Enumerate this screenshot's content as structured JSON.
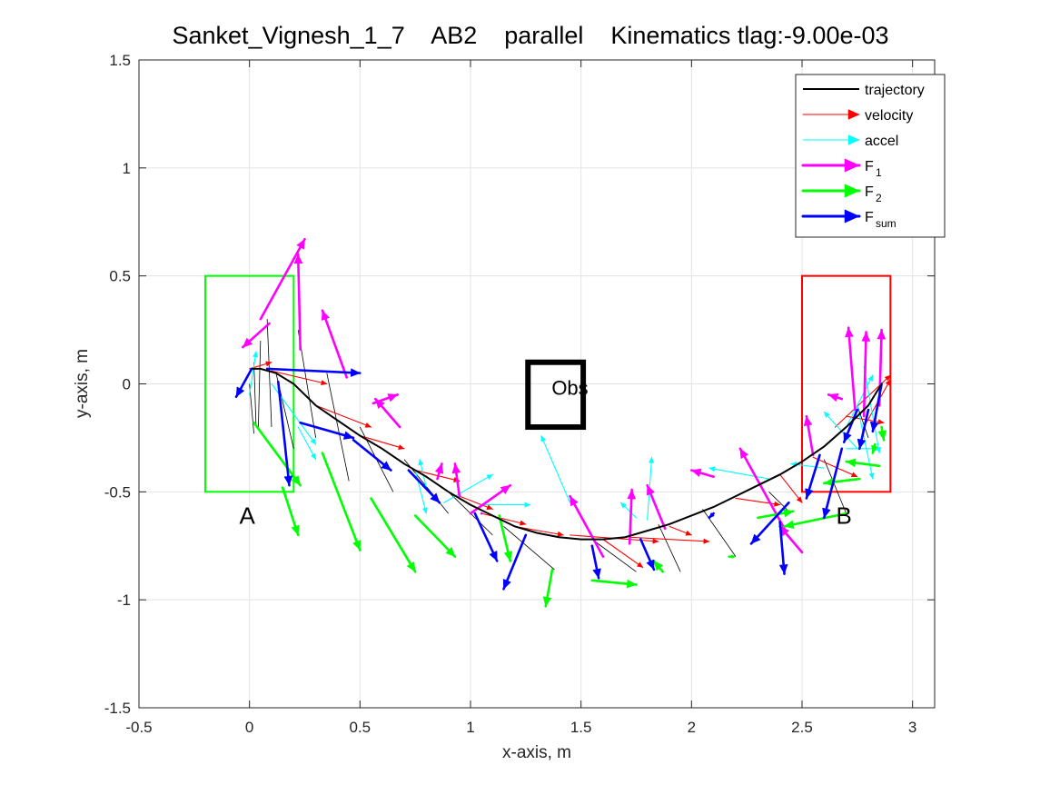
{
  "chart_data": {
    "type": "line",
    "title": "Sanket_Vignesh_1_7    AB2    parallel    Kinematics tlag:-9.00e-03",
    "xlabel": "x-axis, m",
    "ylabel": "y-axis, m",
    "xlim": [
      -0.5,
      3.1
    ],
    "ylim": [
      -1.5,
      1.5
    ],
    "x_ticks": [
      -0.5,
      0,
      0.5,
      1,
      1.5,
      2,
      2.5,
      3
    ],
    "x_tick_labels": [
      "-0.5",
      "0",
      "0.5",
      "1",
      "1.5",
      "2",
      "2.5",
      "3"
    ],
    "y_ticks": [
      -1.5,
      -1,
      -0.5,
      0,
      0.5,
      1,
      1.5
    ],
    "y_tick_labels": [
      "-1.5",
      "-1",
      "-0.5",
      "0",
      "0.5",
      "1",
      "1.5"
    ],
    "grid": true,
    "legend_position": "top-right",
    "legend": [
      {
        "key": "trajectory",
        "label": "trajectory",
        "sub": "",
        "color": "#000000"
      },
      {
        "key": "velocity",
        "label": "velocity",
        "sub": "",
        "color": "#ff0000"
      },
      {
        "key": "accel",
        "label": "accel",
        "sub": "",
        "color": "#00ffff"
      },
      {
        "key": "f1",
        "label": "F",
        "sub": "1",
        "color": "#ff00ff"
      },
      {
        "key": "f2",
        "label": "F",
        "sub": "2",
        "color": "#00ff00"
      },
      {
        "key": "fsum",
        "label": "F",
        "sub": "sum",
        "color": "#0000ff"
      }
    ],
    "regions": [
      {
        "label": "A",
        "x": [
          -0.2,
          0.2
        ],
        "y": [
          -0.5,
          0.5
        ],
        "color": "#00ff00",
        "label_at": [
          -0.01,
          -0.61
        ]
      },
      {
        "label": "B",
        "x": [
          2.5,
          2.9
        ],
        "y": [
          -0.5,
          0.5
        ],
        "color": "#ff0000",
        "label_at": [
          2.69,
          -0.61
        ]
      }
    ],
    "obstacle": {
      "label": "Obs",
      "x": [
        1.26,
        1.51
      ],
      "y": [
        -0.2,
        0.1
      ],
      "color": "#000000",
      "label_at": [
        1.45,
        -0.05
      ]
    },
    "trajectory": {
      "x": [
        0.01,
        0.05,
        0.12,
        0.2,
        0.3,
        0.4,
        0.5,
        0.6,
        0.7,
        0.8,
        0.9,
        1.0,
        1.1,
        1.2,
        1.3,
        1.4,
        1.5,
        1.6,
        1.7,
        1.8,
        1.9,
        2.0,
        2.1,
        2.2,
        2.3,
        2.4,
        2.5,
        2.6,
        2.7,
        2.8,
        2.86
      ],
      "y": [
        0.07,
        0.07,
        0.05,
        0.0,
        -0.1,
        -0.17,
        -0.24,
        -0.3,
        -0.37,
        -0.43,
        -0.5,
        -0.56,
        -0.61,
        -0.66,
        -0.69,
        -0.71,
        -0.72,
        -0.72,
        -0.71,
        -0.68,
        -0.65,
        -0.61,
        -0.57,
        -0.52,
        -0.47,
        -0.42,
        -0.36,
        -0.29,
        -0.2,
        -0.1,
        0.0
      ]
    },
    "samples": [
      {
        "p": [
          0.0,
          0.0
        ],
        "tail": [
          0.02,
          -0.23
        ]
      },
      {
        "p": [
          0.02,
          0.1
        ],
        "tail": [
          0.03,
          -0.2
        ]
      },
      {
        "p": [
          0.05,
          0.2
        ],
        "tail": [
          0.04,
          -0.2
        ]
      },
      {
        "p": [
          0.08,
          0.3
        ],
        "tail": [
          0.1,
          -0.2
        ]
      },
      {
        "p": [
          0.12,
          0.05
        ],
        "tail": [
          0.2,
          -0.3
        ]
      },
      {
        "p": [
          0.22,
          0.25
        ],
        "tail": [
          0.3,
          -0.25
        ]
      },
      {
        "p": [
          0.35,
          0.05
        ],
        "tail": [
          0.45,
          -0.45
        ]
      },
      {
        "p": [
          0.5,
          -0.2
        ],
        "tail": [
          0.65,
          -0.5
        ]
      },
      {
        "p": [
          0.7,
          -0.35
        ],
        "tail": [
          0.9,
          -0.6
        ]
      },
      {
        "p": [
          0.9,
          -0.5
        ],
        "tail": [
          1.1,
          -0.7
        ]
      },
      {
        "p": [
          1.15,
          -0.66
        ],
        "tail": [
          1.38,
          -0.86
        ]
      },
      {
        "p": [
          1.55,
          -0.72
        ],
        "tail": [
          1.75,
          -0.87
        ]
      },
      {
        "p": [
          1.85,
          -0.65
        ],
        "tail": [
          1.95,
          -0.87
        ]
      },
      {
        "p": [
          2.05,
          -0.58
        ],
        "tail": [
          2.2,
          -0.8
        ]
      },
      {
        "p": [
          2.35,
          -0.5
        ],
        "tail": [
          2.45,
          -0.6
        ]
      },
      {
        "p": [
          2.6,
          -0.35
        ],
        "tail": [
          2.7,
          -0.6
        ]
      },
      {
        "p": [
          2.75,
          -0.1
        ],
        "tail": [
          2.8,
          -0.25
        ]
      }
    ],
    "series": [
      {
        "name": "velocity",
        "color": "#ff0000",
        "width": 1.1,
        "head": 6,
        "arrows": [
          [
            0.0,
            0.07,
            0.1,
            0.1
          ],
          [
            0.1,
            0.06,
            0.35,
            0.0
          ],
          [
            0.3,
            -0.1,
            0.55,
            -0.2
          ],
          [
            0.5,
            -0.24,
            0.7,
            -0.3
          ],
          [
            0.75,
            -0.4,
            0.95,
            -0.45
          ],
          [
            0.95,
            -0.52,
            1.1,
            -0.58
          ],
          [
            1.05,
            -0.6,
            1.25,
            -0.65
          ],
          [
            1.2,
            -0.66,
            1.42,
            -0.7
          ],
          [
            1.45,
            -0.7,
            1.85,
            -0.73
          ],
          [
            1.6,
            -0.72,
            1.78,
            -0.85
          ],
          [
            1.72,
            -0.71,
            2.08,
            -0.73
          ],
          [
            1.9,
            -0.66,
            2.0,
            -0.7
          ],
          [
            2.2,
            -0.53,
            2.4,
            -0.56
          ],
          [
            2.4,
            -0.42,
            2.5,
            -0.55
          ],
          [
            2.55,
            -0.34,
            2.75,
            -0.43
          ],
          [
            2.65,
            -0.2,
            2.9,
            0.04
          ],
          [
            2.7,
            -0.15,
            2.87,
            -0.18
          ],
          [
            2.78,
            -0.2,
            2.9,
            0.02
          ]
        ]
      },
      {
        "name": "accel",
        "color": "#00ffff",
        "width": 1.1,
        "head": 6,
        "arrows": [
          [
            0.0,
            -0.05,
            0.03,
            0.15
          ],
          [
            0.1,
            0.0,
            0.3,
            -0.28
          ],
          [
            0.22,
            -0.2,
            0.3,
            -0.35
          ],
          [
            0.8,
            -0.48,
            0.77,
            -0.35
          ],
          [
            0.75,
            -0.4,
            0.8,
            -0.6
          ],
          [
            0.88,
            -0.55,
            1.1,
            -0.42
          ],
          [
            1.45,
            -0.55,
            1.32,
            -0.24
          ],
          [
            1.05,
            -0.56,
            1.27,
            -0.56
          ],
          [
            1.8,
            -0.63,
            1.82,
            -0.34
          ],
          [
            1.75,
            -0.62,
            1.68,
            -0.55
          ],
          [
            2.35,
            -0.44,
            2.08,
            -0.39
          ],
          [
            2.6,
            -0.39,
            2.45,
            -0.37
          ],
          [
            2.75,
            -0.3,
            2.6,
            -0.13
          ],
          [
            2.7,
            -0.3,
            2.85,
            -0.3
          ],
          [
            2.78,
            0.08,
            2.85,
            -0.32
          ],
          [
            2.7,
            -0.2,
            2.82,
            0.04
          ],
          [
            2.75,
            -0.1,
            2.82,
            -0.44
          ]
        ]
      },
      {
        "name": "F1",
        "color": "#ff00ff",
        "width": 2.6,
        "head": 10,
        "arrows": [
          [
            0.09,
            0.28,
            -0.03,
            0.17
          ],
          [
            0.05,
            0.3,
            0.25,
            0.67
          ],
          [
            0.23,
            0.16,
            0.22,
            0.6
          ],
          [
            0.44,
            0.03,
            0.33,
            0.34
          ],
          [
            0.56,
            -0.09,
            0.67,
            -0.05
          ],
          [
            0.68,
            -0.2,
            0.57,
            -0.07
          ],
          [
            0.85,
            -0.44,
            0.87,
            -0.37
          ],
          [
            0.95,
            -0.52,
            0.93,
            -0.37
          ],
          [
            1.0,
            -0.6,
            1.18,
            -0.47
          ],
          [
            1.05,
            -0.6,
            1.05,
            -0.6
          ],
          [
            1.6,
            -0.8,
            1.45,
            -0.52
          ],
          [
            1.72,
            -0.74,
            1.73,
            -0.49
          ],
          [
            1.88,
            -0.67,
            1.8,
            -0.47
          ],
          [
            2.1,
            -0.43,
            2.0,
            -0.4
          ],
          [
            2.42,
            -0.67,
            2.22,
            -0.3
          ],
          [
            2.5,
            -0.78,
            2.4,
            -0.66
          ],
          [
            2.55,
            -0.33,
            2.52,
            -0.15
          ],
          [
            2.68,
            -0.07,
            2.62,
            -0.05
          ],
          [
            2.74,
            -0.12,
            2.71,
            0.26
          ],
          [
            2.78,
            -0.15,
            2.79,
            0.24
          ],
          [
            2.85,
            -0.1,
            2.86,
            0.25
          ]
        ]
      },
      {
        "name": "F2",
        "color": "#00ff00",
        "width": 2.6,
        "head": 10,
        "arrows": [
          [
            0.02,
            -0.18,
            0.23,
            -0.47
          ],
          [
            0.15,
            -0.48,
            0.22,
            -0.7
          ],
          [
            0.33,
            -0.32,
            0.5,
            -0.77
          ],
          [
            0.55,
            -0.53,
            0.75,
            -0.87
          ],
          [
            0.75,
            -0.61,
            0.93,
            -0.8
          ],
          [
            1.13,
            -0.61,
            1.18,
            -0.82
          ],
          [
            1.37,
            -0.86,
            1.34,
            -1.03
          ],
          [
            1.55,
            -0.91,
            1.75,
            -0.93
          ],
          [
            1.87,
            -0.87,
            1.83,
            -0.82
          ],
          [
            2.19,
            -0.8,
            2.17,
            -0.8
          ],
          [
            2.3,
            -0.62,
            2.46,
            -0.59
          ],
          [
            2.7,
            -0.6,
            2.42,
            -0.66
          ],
          [
            2.76,
            -0.44,
            2.6,
            -0.46
          ],
          [
            2.85,
            -0.38,
            2.7,
            -0.36
          ],
          [
            2.83,
            -0.28,
            2.82,
            -0.32
          ],
          [
            2.86,
            -0.2,
            2.87,
            -0.26
          ]
        ]
      },
      {
        "name": "Fsum",
        "color": "#0000ff",
        "width": 2.6,
        "head": 10,
        "arrows": [
          [
            0.01,
            0.07,
            -0.06,
            -0.06
          ],
          [
            0.08,
            0.07,
            0.5,
            0.05
          ],
          [
            0.13,
            0.01,
            0.18,
            -0.47
          ],
          [
            0.23,
            -0.18,
            0.47,
            -0.25
          ],
          [
            0.47,
            -0.26,
            0.64,
            -0.4
          ],
          [
            0.72,
            -0.4,
            0.86,
            -0.55
          ],
          [
            1.02,
            -0.6,
            1.12,
            -0.82
          ],
          [
            1.25,
            -0.7,
            1.15,
            -0.95
          ],
          [
            1.55,
            -0.75,
            1.58,
            -0.9
          ],
          [
            1.77,
            -0.72,
            1.83,
            -0.86
          ],
          [
            2.1,
            -0.6,
            2.08,
            -0.62
          ],
          [
            2.44,
            -0.55,
            2.27,
            -0.74
          ],
          [
            2.4,
            -0.64,
            2.42,
            -0.88
          ],
          [
            2.58,
            -0.33,
            2.52,
            -0.53
          ],
          [
            2.68,
            -0.3,
            2.6,
            -0.62
          ],
          [
            2.75,
            -0.12,
            2.69,
            -0.27
          ],
          [
            2.8,
            -0.12,
            2.76,
            -0.3
          ],
          [
            2.86,
            0.0,
            2.82,
            -0.22
          ]
        ]
      }
    ]
  }
}
